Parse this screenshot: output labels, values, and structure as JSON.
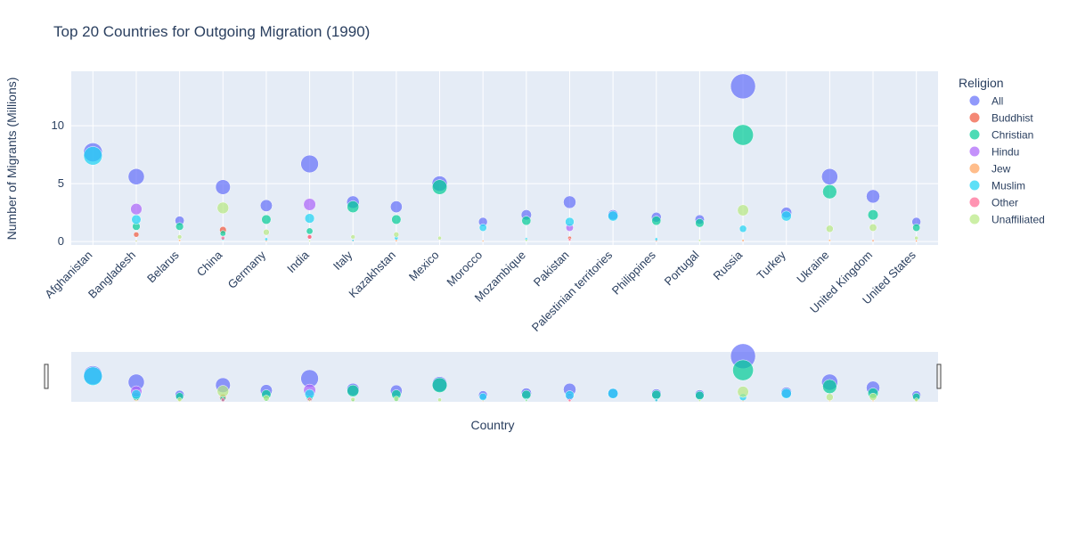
{
  "chart_data": {
    "type": "scatter",
    "title": "Top 20 Countries for Outgoing Migration (1990)",
    "xlabel": "Country",
    "ylabel": "Number of Migrants (Millions)",
    "ylim": [
      -0.3,
      14.7
    ],
    "yticks": [
      0,
      5,
      10
    ],
    "legend_title": "Religion",
    "legend_position": "right",
    "grid": true,
    "range_slider": true,
    "categories": [
      "Afghanistan",
      "Bangladesh",
      "Belarus",
      "China",
      "Germany",
      "India",
      "Italy",
      "Kazakhstan",
      "Mexico",
      "Morocco",
      "Mozambique",
      "Pakistan",
      "Palestinian territories",
      "Philippines",
      "Portugal",
      "Russia",
      "Turkey",
      "Ukraine",
      "United Kingdom",
      "United States"
    ],
    "series": [
      {
        "name": "All",
        "color": "#636efa",
        "values": [
          7.7,
          5.6,
          1.8,
          4.7,
          3.1,
          6.7,
          3.4,
          3.0,
          5.0,
          1.7,
          2.3,
          3.4,
          2.3,
          2.1,
          1.9,
          13.4,
          2.5,
          5.6,
          3.9,
          1.7
        ]
      },
      {
        "name": "Buddhist",
        "color": "#EF553B",
        "values": [
          0,
          0.6,
          0,
          1.0,
          0.05,
          0.4,
          0.05,
          0.05,
          0,
          0,
          0,
          0.3,
          0,
          0.05,
          0,
          0.05,
          0,
          0,
          0.1,
          0.05
        ]
      },
      {
        "name": "Christian",
        "color": "#00cc96",
        "values": [
          0,
          1.3,
          1.3,
          0.7,
          1.9,
          0.9,
          3.0,
          1.9,
          4.7,
          0,
          1.8,
          0,
          0,
          1.8,
          1.6,
          9.2,
          0,
          4.3,
          2.3,
          1.2
        ]
      },
      {
        "name": "Hindu",
        "color": "#ab63fa",
        "values": [
          0,
          2.8,
          0,
          0,
          0,
          3.2,
          0,
          0,
          0,
          0,
          0,
          1.2,
          0,
          0,
          0,
          0,
          0,
          0,
          0,
          0
        ]
      },
      {
        "name": "Jew",
        "color": "#FFA15A",
        "values": [
          0,
          0,
          0.1,
          0,
          0.05,
          0,
          0,
          0.1,
          0,
          0.05,
          0,
          0,
          0,
          0,
          0,
          0.1,
          0,
          0.1,
          0.05,
          0.05
        ]
      },
      {
        "name": "Muslim",
        "color": "#19d3f3",
        "values": [
          7.4,
          1.9,
          0,
          0.2,
          0.2,
          2.0,
          0.1,
          0.3,
          0,
          1.2,
          0.2,
          1.7,
          2.2,
          0.2,
          0,
          1.1,
          2.2,
          0,
          0,
          0
        ]
      },
      {
        "name": "Other",
        "color": "#FF6692",
        "values": [
          0,
          0.05,
          0,
          0.3,
          0,
          0.4,
          0,
          0,
          0,
          0,
          0,
          0.15,
          0,
          0,
          0,
          0,
          0,
          0,
          0,
          0
        ]
      },
      {
        "name": "Unaffiliated",
        "color": "#B6E880",
        "values": [
          0,
          0.05,
          0.4,
          2.9,
          0.8,
          0.05,
          0.4,
          0.6,
          0.3,
          0,
          0.1,
          0,
          0,
          0,
          0.1,
          2.7,
          0,
          1.1,
          1.2,
          0.3
        ]
      }
    ]
  }
}
